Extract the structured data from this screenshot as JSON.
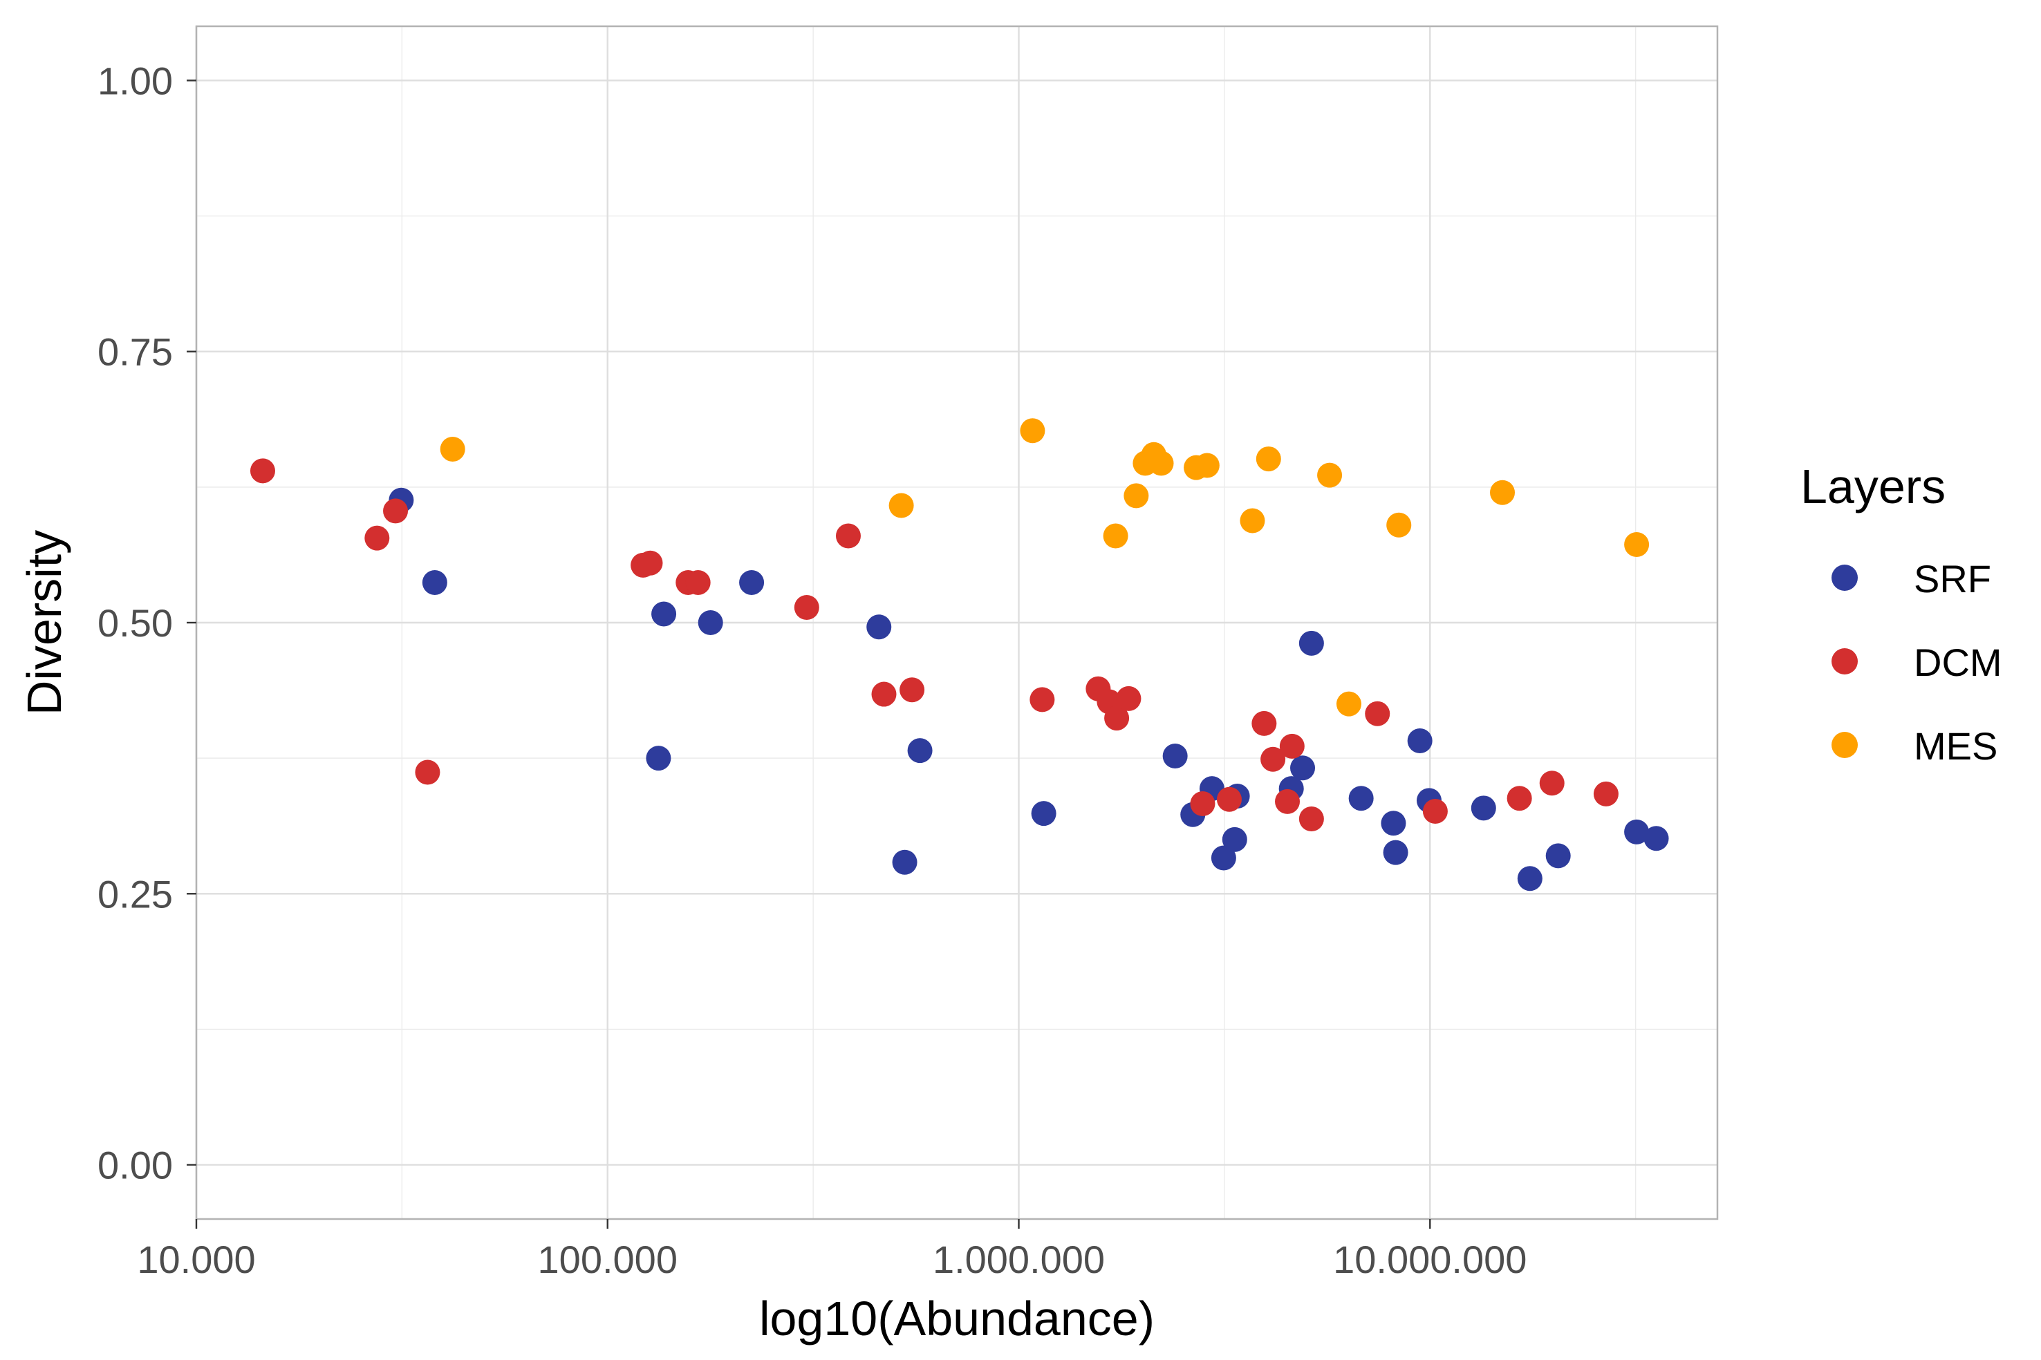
{
  "chart_data": {
    "type": "scatter",
    "xscale": "log10",
    "xlabel": "log10(Abundance)",
    "ylabel": "Diversity",
    "xlim": [
      10000,
      50000000
    ],
    "ylim": [
      -0.05,
      1.05
    ],
    "x_ticks": [
      {
        "value": 10000,
        "label": "10.000"
      },
      {
        "value": 100000,
        "label": "100.000"
      },
      {
        "value": 1000000,
        "label": "1.000.000"
      },
      {
        "value": 10000000,
        "label": "10.000.000"
      }
    ],
    "y_ticks": [
      {
        "value": 0.0,
        "label": "0.00"
      },
      {
        "value": 0.25,
        "label": "0.25"
      },
      {
        "value": 0.5,
        "label": "0.50"
      },
      {
        "value": 0.75,
        "label": "0.75"
      },
      {
        "value": 1.0,
        "label": "1.00"
      }
    ],
    "grid": true,
    "legend": {
      "title": "Layers",
      "placement": "right"
    },
    "series": [
      {
        "name": "SRF",
        "color": "#2e3c9c",
        "points": [
          [
            31500,
            0.613
          ],
          [
            38000,
            0.537
          ],
          [
            133000,
            0.375
          ],
          [
            137000,
            0.508
          ],
          [
            178000,
            0.5
          ],
          [
            224000,
            0.537
          ],
          [
            457000,
            0.496
          ],
          [
            528000,
            0.279
          ],
          [
            575000,
            0.382
          ],
          [
            1150000,
            0.324
          ],
          [
            2400000,
            0.377
          ],
          [
            2650000,
            0.323
          ],
          [
            2950000,
            0.347
          ],
          [
            3150000,
            0.283
          ],
          [
            3350000,
            0.3
          ],
          [
            3400000,
            0.34
          ],
          [
            4600000,
            0.347
          ],
          [
            4900000,
            0.366
          ],
          [
            5150000,
            0.481
          ],
          [
            6800000,
            0.338
          ],
          [
            8150000,
            0.315
          ],
          [
            8250000,
            0.288
          ],
          [
            9450000,
            0.391
          ],
          [
            9950000,
            0.336
          ],
          [
            13500000,
            0.329
          ],
          [
            17500000,
            0.264
          ],
          [
            20500000,
            0.285
          ],
          [
            31800000,
            0.307
          ],
          [
            35500000,
            0.301
          ]
        ]
      },
      {
        "name": "DCM",
        "color": "#d32f2f",
        "points": [
          [
            14500,
            0.64
          ],
          [
            27500,
            0.578
          ],
          [
            30500,
            0.603
          ],
          [
            36500,
            0.362
          ],
          [
            122000,
            0.553
          ],
          [
            127000,
            0.555
          ],
          [
            157000,
            0.537
          ],
          [
            166000,
            0.537
          ],
          [
            305000,
            0.514
          ],
          [
            385000,
            0.58
          ],
          [
            470000,
            0.434
          ],
          [
            550000,
            0.438
          ],
          [
            1140000,
            0.429
          ],
          [
            1560000,
            0.439
          ],
          [
            1660000,
            0.427
          ],
          [
            1730000,
            0.412
          ],
          [
            1850000,
            0.43
          ],
          [
            2800000,
            0.333
          ],
          [
            3250000,
            0.337
          ],
          [
            3950000,
            0.407
          ],
          [
            4150000,
            0.374
          ],
          [
            4500000,
            0.335
          ],
          [
            4620000,
            0.386
          ],
          [
            5150000,
            0.319
          ],
          [
            7450000,
            0.416
          ],
          [
            10300000,
            0.326
          ],
          [
            16500000,
            0.338
          ],
          [
            19800000,
            0.352
          ],
          [
            26800000,
            0.342
          ]
        ]
      },
      {
        "name": "MES",
        "color": "#ffa000",
        "points": [
          [
            42000,
            0.66
          ],
          [
            518000,
            0.608
          ],
          [
            1080000,
            0.677
          ],
          [
            1720000,
            0.58
          ],
          [
            1930000,
            0.617
          ],
          [
            2030000,
            0.647
          ],
          [
            2130000,
            0.655
          ],
          [
            2220000,
            0.647
          ],
          [
            2700000,
            0.643
          ],
          [
            2870000,
            0.645
          ],
          [
            3700000,
            0.594
          ],
          [
            4050000,
            0.651
          ],
          [
            5700000,
            0.636
          ],
          [
            6350000,
            0.425
          ],
          [
            8400000,
            0.59
          ],
          [
            15000000,
            0.62
          ],
          [
            31800000,
            0.572
          ]
        ]
      }
    ]
  }
}
